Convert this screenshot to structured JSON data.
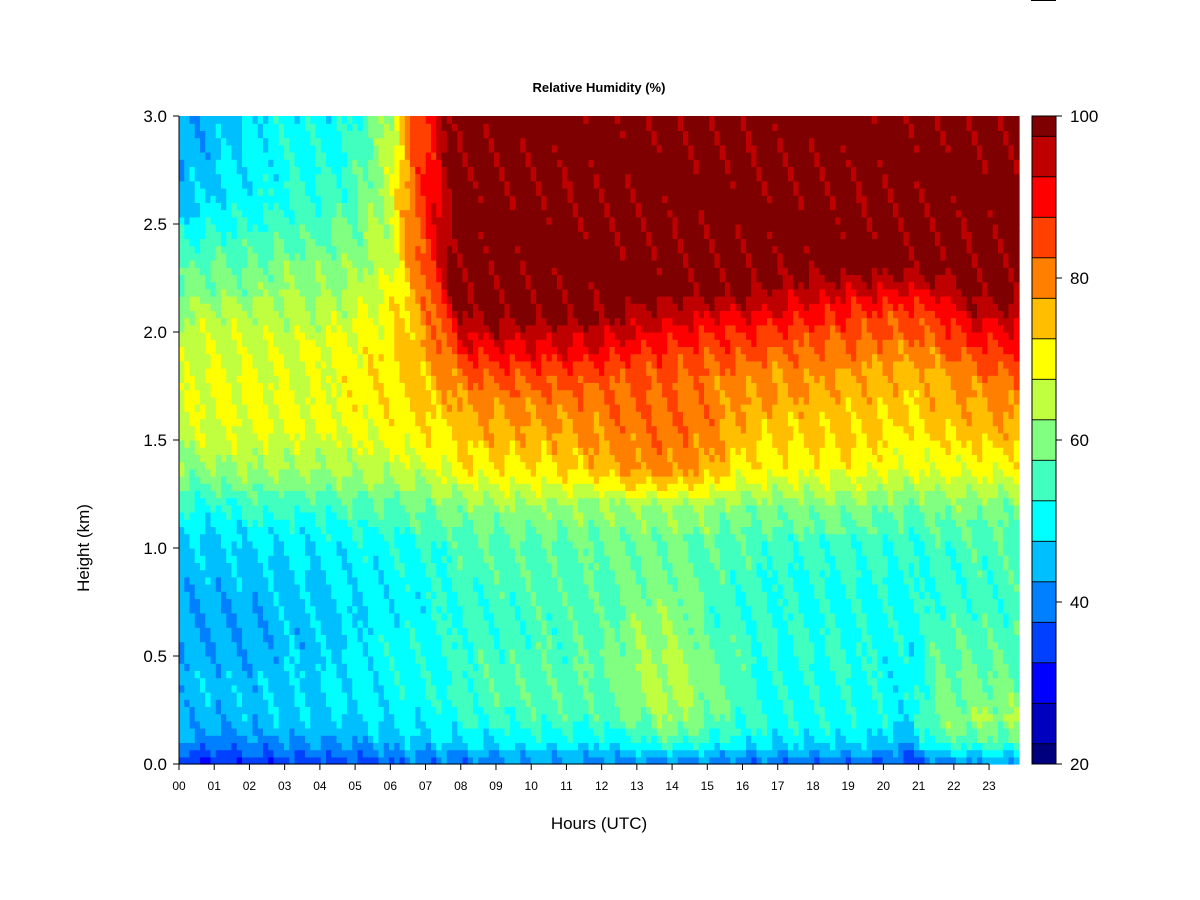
{
  "chart_data": {
    "type": "heatmap",
    "title": "Relative Humidity (%)",
    "xlabel": "Hours (UTC)",
    "ylabel": "Height (km)",
    "xlim": [
      0,
      23.85
    ],
    "ylim": [
      0.0,
      3.0
    ],
    "x_ticks": [
      "00",
      "01",
      "02",
      "03",
      "04",
      "05",
      "06",
      "07",
      "08",
      "09",
      "10",
      "11",
      "12",
      "13",
      "14",
      "15",
      "16",
      "17",
      "18",
      "19",
      "20",
      "21",
      "22",
      "23"
    ],
    "y_ticks": [
      "0.0",
      "0.5",
      "1.0",
      "1.5",
      "2.0",
      "2.5",
      "3.0"
    ],
    "z_range": [
      20,
      100
    ],
    "colorbar": {
      "levels": [
        20,
        25,
        30,
        35,
        40,
        45,
        50,
        55,
        60,
        65,
        70,
        75,
        80,
        85,
        90,
        95,
        100
      ],
      "colors": [
        "#00007F",
        "#0000BF",
        "#0000FF",
        "#0040FF",
        "#0080FF",
        "#00BFFF",
        "#00FFFF",
        "#40FFBF",
        "#80FF80",
        "#BFFF40",
        "#FFFF00",
        "#FFBF00",
        "#FF8000",
        "#FF4000",
        "#FF0000",
        "#BF0000",
        "#7F0000"
      ],
      "tick_labels": [
        "20",
        "40",
        "60",
        "80",
        "100"
      ]
    },
    "profile_heights_km": [
      0.0,
      0.05,
      0.1,
      0.2,
      0.3,
      0.5,
      0.7,
      1.0,
      1.2,
      1.3,
      1.4,
      1.6,
      1.8,
      1.9,
      2.0,
      2.1,
      2.2,
      2.3,
      2.6,
      3.0
    ],
    "profiles": [
      {
        "hour": 0.0,
        "rh": [
          32,
          36,
          42,
          44,
          45,
          44,
          42,
          46,
          52,
          58,
          62,
          66,
          66,
          65,
          64,
          62,
          58,
          56,
          46,
          42
        ]
      },
      {
        "hour": 1.0,
        "rh": [
          32,
          36,
          40,
          44,
          45,
          44,
          43,
          46,
          52,
          58,
          63,
          68,
          68,
          67,
          66,
          64,
          60,
          58,
          48,
          44
        ]
      },
      {
        "hour": 2.0,
        "rh": [
          33,
          37,
          41,
          44,
          45,
          44,
          43,
          47,
          54,
          60,
          64,
          68,
          68,
          67,
          66,
          64,
          60,
          58,
          50,
          48
        ]
      },
      {
        "hour": 3.0,
        "rh": [
          34,
          38,
          42,
          46,
          47,
          46,
          45,
          48,
          54,
          60,
          64,
          68,
          68,
          68,
          66,
          64,
          62,
          60,
          52,
          50
        ]
      },
      {
        "hour": 4.0,
        "rh": [
          34,
          38,
          42,
          46,
          47,
          46,
          45,
          48,
          54,
          60,
          64,
          68,
          68,
          68,
          66,
          64,
          62,
          60,
          54,
          50
        ]
      },
      {
        "hour": 5.0,
        "rh": [
          35,
          39,
          43,
          47,
          49,
          49,
          48,
          50,
          56,
          61,
          65,
          69,
          70,
          70,
          68,
          66,
          64,
          62,
          56,
          52
        ]
      },
      {
        "hour": 6.0,
        "rh": [
          37,
          41,
          45,
          48,
          50,
          50,
          49,
          51,
          57,
          62,
          66,
          70,
          72,
          72,
          71,
          70,
          68,
          66,
          66,
          64
        ]
      },
      {
        "hour": 6.6,
        "rh": [
          38,
          42,
          46,
          49,
          51,
          51,
          50,
          52,
          58,
          63,
          67,
          72,
          74,
          75,
          75,
          75,
          76,
          78,
          82,
          82
        ]
      },
      {
        "hour": 7.2,
        "rh": [
          38,
          42,
          46,
          50,
          52,
          52,
          51,
          53,
          59,
          64,
          68,
          73,
          76,
          78,
          80,
          82,
          85,
          88,
          90,
          90
        ]
      },
      {
        "hour": 7.8,
        "rh": [
          38,
          42,
          47,
          51,
          53,
          53,
          52,
          54,
          60,
          66,
          70,
          74,
          79,
          84,
          88,
          93,
          99,
          100,
          100,
          100
        ]
      },
      {
        "hour": 8.0,
        "rh": [
          39,
          43,
          48,
          52,
          54,
          54,
          53,
          55,
          61,
          67,
          72,
          76,
          82,
          88,
          93,
          99,
          100,
          100,
          100,
          100
        ]
      },
      {
        "hour": 9.0,
        "rh": [
          40,
          44,
          49,
          53,
          55,
          55,
          54,
          56,
          62,
          68,
          73,
          77,
          84,
          90,
          95,
          100,
          100,
          100,
          100,
          100
        ]
      },
      {
        "hour": 10.0,
        "rh": [
          41,
          45,
          50,
          54,
          56,
          56,
          55,
          56,
          62,
          68,
          73,
          78,
          84,
          90,
          95,
          100,
          100,
          100,
          100,
          100
        ]
      },
      {
        "hour": 11.0,
        "rh": [
          41,
          45,
          50,
          54,
          56,
          56,
          55,
          56,
          62,
          69,
          74,
          78,
          85,
          90,
          96,
          100,
          100,
          100,
          100,
          100
        ]
      },
      {
        "hour": 12.0,
        "rh": [
          40,
          44,
          50,
          54,
          56,
          57,
          56,
          57,
          62,
          70,
          76,
          80,
          84,
          90,
          95,
          99,
          100,
          100,
          100,
          100
        ]
      },
      {
        "hour": 13.0,
        "rh": [
          39,
          44,
          52,
          58,
          62,
          62,
          60,
          58,
          62,
          74,
          80,
          82,
          84,
          87,
          93,
          97,
          100,
          100,
          100,
          100
        ]
      },
      {
        "hour": 14.0,
        "rh": [
          40,
          46,
          55,
          62,
          64,
          64,
          62,
          58,
          62,
          74,
          80,
          82,
          83,
          86,
          90,
          96,
          100,
          100,
          100,
          100
        ]
      },
      {
        "hour": 15.0,
        "rh": [
          39,
          45,
          52,
          58,
          60,
          58,
          56,
          57,
          62,
          72,
          78,
          80,
          81,
          84,
          88,
          94,
          100,
          100,
          100,
          100
        ]
      },
      {
        "hour": 16.0,
        "rh": [
          38,
          44,
          50,
          54,
          54,
          54,
          53,
          55,
          60,
          68,
          72,
          76,
          80,
          84,
          88,
          94,
          99,
          100,
          100,
          100
        ]
      },
      {
        "hour": 17.0,
        "rh": [
          38,
          43,
          49,
          52,
          52,
          52,
          52,
          54,
          60,
          66,
          71,
          75,
          78,
          82,
          86,
          92,
          96,
          100,
          100,
          100
        ]
      },
      {
        "hour": 18.0,
        "rh": [
          38,
          43,
          48,
          51,
          52,
          52,
          52,
          54,
          60,
          66,
          71,
          75,
          78,
          82,
          85,
          90,
          95,
          100,
          100,
          100
        ]
      },
      {
        "hour": 19.0,
        "rh": [
          38,
          43,
          48,
          51,
          52,
          52,
          52,
          54,
          60,
          66,
          71,
          74,
          77,
          81,
          84,
          88,
          94,
          100,
          100,
          100
        ]
      },
      {
        "hour": 20.0,
        "rh": [
          37,
          42,
          46,
          50,
          51,
          51,
          51,
          53,
          59,
          65,
          70,
          73,
          76,
          80,
          83,
          86,
          93,
          100,
          100,
          100
        ]
      },
      {
        "hour": 20.8,
        "rh": [
          34,
          38,
          44,
          48,
          50,
          50,
          50,
          52,
          58,
          64,
          69,
          72,
          75,
          79,
          82,
          86,
          92,
          99,
          100,
          100
        ]
      },
      {
        "hour": 21.5,
        "rh": [
          40,
          46,
          54,
          60,
          58,
          56,
          54,
          54,
          60,
          65,
          70,
          74,
          77,
          80,
          84,
          88,
          95,
          100,
          100,
          100
        ]
      },
      {
        "hour": 22.5,
        "rh": [
          42,
          48,
          56,
          62,
          60,
          57,
          55,
          55,
          60,
          65,
          70,
          76,
          80,
          85,
          90,
          95,
          100,
          100,
          100,
          100
        ]
      },
      {
        "hour": 23.85,
        "rh": [
          42,
          48,
          56,
          62,
          60,
          57,
          55,
          55,
          60,
          66,
          71,
          78,
          82,
          87,
          92,
          97,
          100,
          100,
          100,
          100
        ]
      }
    ]
  }
}
